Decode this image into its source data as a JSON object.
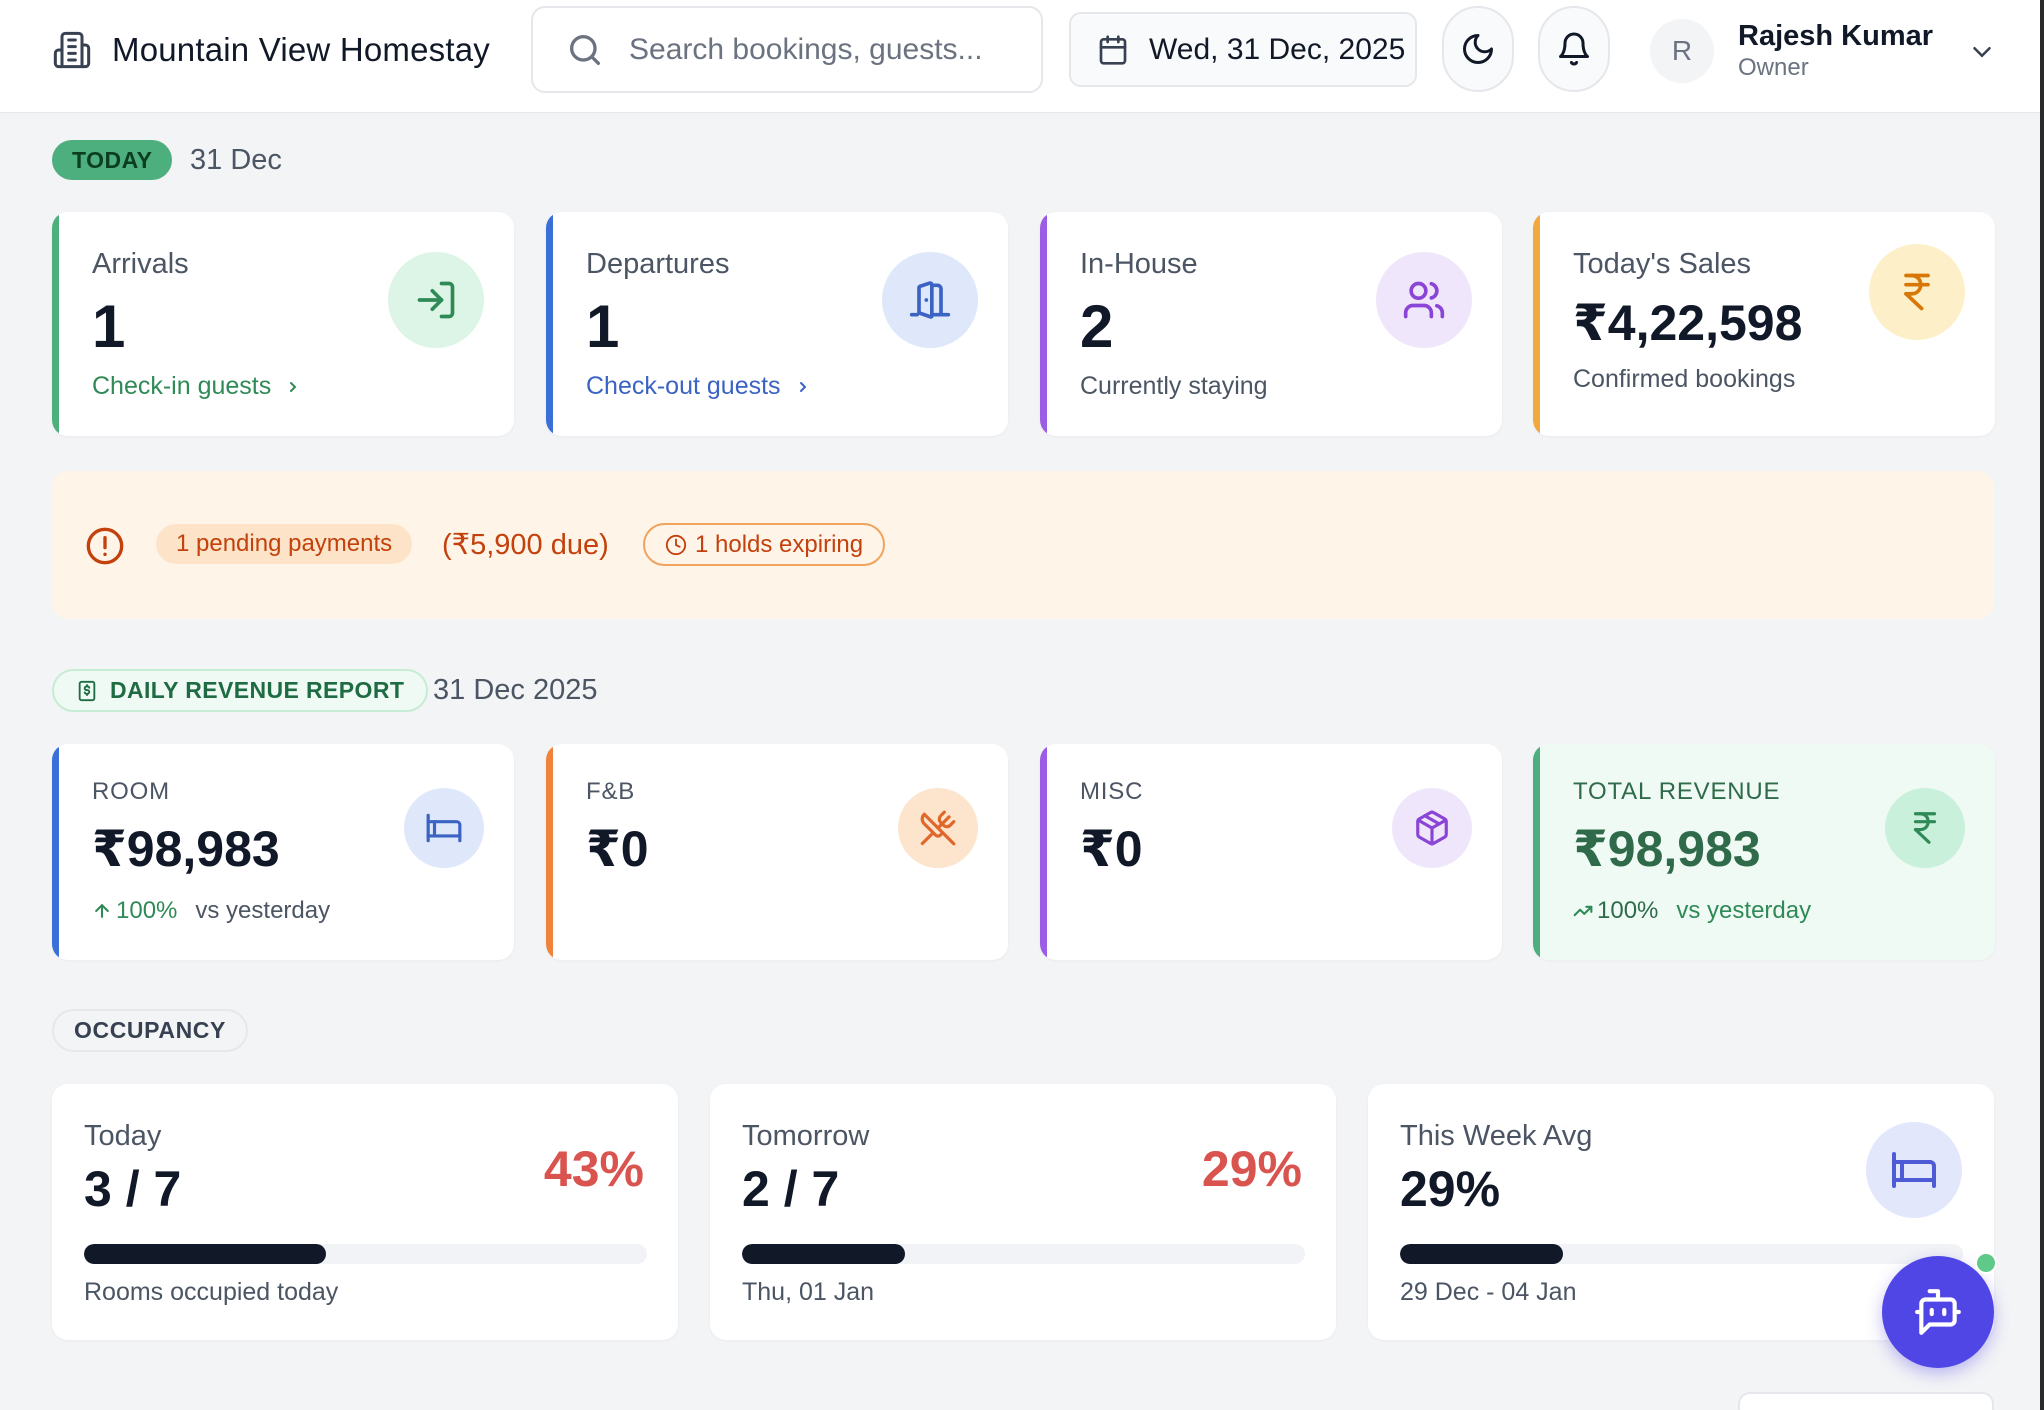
{
  "header": {
    "brand_title": "Mountain View Homestay",
    "search_placeholder": "Search bookings, guests...",
    "date": "Wed, 31 Dec, 2025",
    "user": {
      "initial": "R",
      "name": "Rajesh Kumar",
      "role": "Owner"
    }
  },
  "today": {
    "badge": "TODAY",
    "date": "31 Dec",
    "cards": [
      {
        "label": "Arrivals",
        "value": "1",
        "link": "Check-in guests",
        "color": "#4caf7d"
      },
      {
        "label": "Departures",
        "value": "1",
        "link": "Check-out guests",
        "color": "#3b6fd8"
      },
      {
        "label": "In-House",
        "value": "2",
        "sub": "Currently staying",
        "color": "#9b5de5"
      },
      {
        "label": "Today's Sales",
        "value": "₹4,22,598",
        "sub": "Confirmed bookings",
        "color": "#f0a93b"
      }
    ]
  },
  "alert": {
    "pending": "1 pending payments",
    "due": "(₹5,900 due)",
    "holds": "1 holds expiring"
  },
  "revenue": {
    "badge": "DAILY REVENUE REPORT",
    "date": "31 Dec 2025",
    "cards": [
      {
        "label": "ROOM",
        "value": "₹98,983",
        "trend_pct": "100%",
        "trend_text": "vs yesterday",
        "color": "#3b6fd8"
      },
      {
        "label": "F&B",
        "value": "₹0",
        "color": "#f0833b"
      },
      {
        "label": "MISC",
        "value": "₹0",
        "color": "#9b5de5"
      },
      {
        "label": "TOTAL REVENUE",
        "value": "₹98,983",
        "trend_pct": "100%",
        "trend_text": "vs yesterday",
        "color": "#4caf7d"
      }
    ]
  },
  "occupancy": {
    "badge": "OCCUPANCY",
    "cards": [
      {
        "label": "Today",
        "value": "3 / 7",
        "pct": "43%",
        "fill": 0.43,
        "sub": "Rooms occupied today"
      },
      {
        "label": "Tomorrow",
        "value": "2 / 7",
        "pct": "29%",
        "fill": 0.29,
        "sub": "Thu, 01 Jan"
      },
      {
        "label": "This Week Avg",
        "value": "29%",
        "fill": 0.29,
        "sub": "29 Dec - 04 Jan"
      }
    ]
  }
}
